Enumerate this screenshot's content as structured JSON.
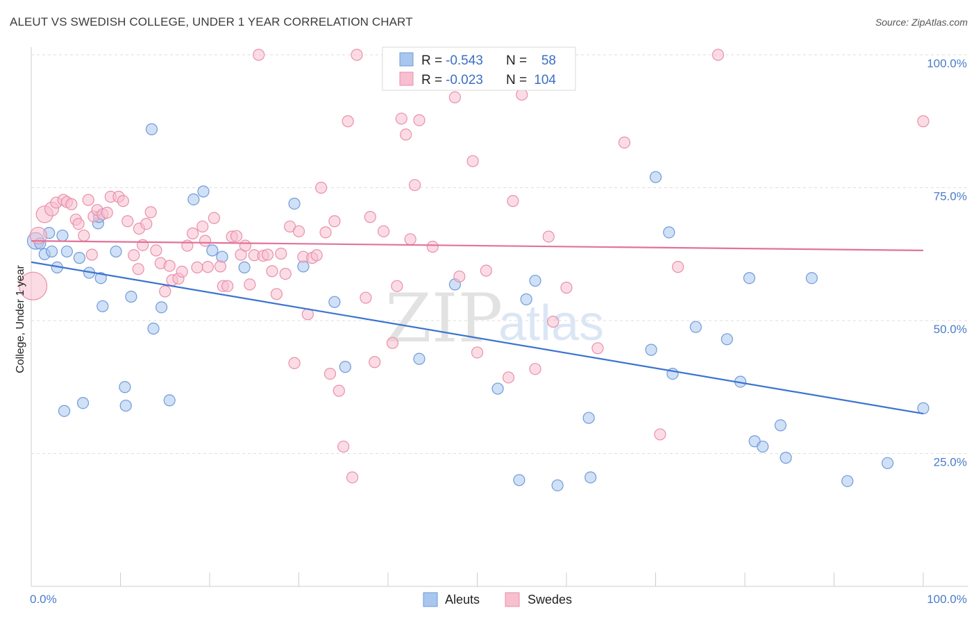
{
  "title": "ALEUT VS SWEDISH COLLEGE, UNDER 1 YEAR CORRELATION CHART",
  "source": "Source: ZipAtlas.com",
  "watermark": {
    "zip": "ZIP",
    "atlas": "atlas"
  },
  "legend": {
    "rows": [
      {
        "r_label": "R =",
        "r_value": "-0.543",
        "n_label": "N =",
        "n_value": "58",
        "color": "#a9c6ef",
        "stroke": "#6f9bd8"
      },
      {
        "r_label": "R =",
        "r_value": "-0.023",
        "n_label": "N =",
        "n_value": "104",
        "color": "#f7bfd0",
        "stroke": "#e98fab"
      }
    ]
  },
  "bottom_legend": [
    {
      "label": "Aleuts",
      "color": "#a9c6ef",
      "stroke": "#6f9bd8"
    },
    {
      "label": "Swedes",
      "color": "#f7bfd0",
      "stroke": "#e98fab"
    }
  ],
  "chart_data": {
    "type": "scatter",
    "title": "ALEUT VS SWEDISH COLLEGE, UNDER 1 YEAR CORRELATION CHART",
    "xlabel": "",
    "ylabel": "College, Under 1 year",
    "xlim": [
      0,
      100
    ],
    "ylim": [
      0,
      100
    ],
    "x_tick_labels": [
      {
        "value": 0,
        "label": "0.0%"
      },
      {
        "value": 100,
        "label": "100.0%"
      }
    ],
    "y_tick_labels": [
      {
        "value": 25,
        "label": "25.0%"
      },
      {
        "value": 50,
        "label": "50.0%"
      },
      {
        "value": 75,
        "label": "75.0%"
      },
      {
        "value": 100,
        "label": "100.0%"
      }
    ],
    "grid": "horizontal dashed",
    "legend_position": "top-center",
    "series": [
      {
        "name": "Aleuts",
        "color": "#a9c6ef",
        "stroke": "#6f9bd8",
        "line_color": "#3a74d0",
        "trend": {
          "x": [
            0,
            100
          ],
          "y": [
            61.0,
            32.5
          ]
        },
        "points": [
          [
            0.5,
            65,
            12
          ],
          [
            1.0,
            64.5,
            8
          ],
          [
            1.5,
            62.5,
            8
          ],
          [
            2.0,
            66.5,
            8
          ],
          [
            2.3,
            63,
            8
          ],
          [
            2.9,
            60,
            8
          ],
          [
            3.5,
            66,
            8
          ],
          [
            4.0,
            63,
            8
          ],
          [
            3.7,
            33,
            8
          ],
          [
            5.4,
            61.8,
            8
          ],
          [
            5.8,
            34.5,
            8
          ],
          [
            6.5,
            59,
            8
          ],
          [
            7.8,
            58,
            8
          ],
          [
            7.5,
            68.3,
            8
          ],
          [
            8.0,
            52.7,
            8
          ],
          [
            9.5,
            63,
            8
          ],
          [
            10.5,
            37.5,
            8
          ],
          [
            10.6,
            34,
            8
          ],
          [
            11.2,
            54.5,
            8
          ],
          [
            13.5,
            86,
            8
          ],
          [
            13.7,
            48.5,
            8
          ],
          [
            14.6,
            52.5,
            8
          ],
          [
            15.5,
            35,
            8
          ],
          [
            18.2,
            72.8,
            8
          ],
          [
            19.3,
            74.3,
            8
          ],
          [
            20.3,
            63.2,
            8
          ],
          [
            21.4,
            62,
            8
          ],
          [
            23.9,
            60,
            8
          ],
          [
            29.5,
            72,
            8
          ],
          [
            30.5,
            60.2,
            8
          ],
          [
            34.0,
            53.5,
            8
          ],
          [
            35.2,
            41.3,
            8
          ],
          [
            43.5,
            42.8,
            8
          ],
          [
            47.5,
            56.8,
            8
          ],
          [
            52.3,
            37.2,
            8
          ],
          [
            54.7,
            20,
            8
          ],
          [
            55.5,
            54,
            8
          ],
          [
            56.5,
            57.5,
            8
          ],
          [
            59.0,
            19,
            8
          ],
          [
            62.5,
            31.7,
            8
          ],
          [
            62.7,
            20.5,
            8
          ],
          [
            69.5,
            44.5,
            8
          ],
          [
            70.0,
            77,
            8
          ],
          [
            71.5,
            66.6,
            8
          ],
          [
            71.9,
            40,
            8
          ],
          [
            74.5,
            48.8,
            8
          ],
          [
            78.0,
            46.5,
            8
          ],
          [
            79.5,
            38.5,
            8
          ],
          [
            80.5,
            58,
            8
          ],
          [
            81.1,
            27.3,
            8
          ],
          [
            82.0,
            26.3,
            8
          ],
          [
            84.0,
            30.3,
            8
          ],
          [
            84.6,
            24.2,
            8
          ],
          [
            87.5,
            58,
            8
          ],
          [
            91.5,
            19.8,
            8
          ],
          [
            96.0,
            23.2,
            8
          ],
          [
            100.0,
            33.5,
            8
          ],
          [
            7.6,
            69.5,
            8
          ]
        ]
      },
      {
        "name": "Swedes",
        "color": "#f7bfd0",
        "stroke": "#e98fab",
        "line_color": "#e2729a",
        "trend": {
          "x": [
            0,
            100
          ],
          "y": [
            65.0,
            63.2
          ]
        },
        "points": [
          [
            0.2,
            56.5,
            20
          ],
          [
            0.8,
            66,
            12
          ],
          [
            1.5,
            70,
            12
          ],
          [
            2.3,
            71,
            10
          ],
          [
            2.8,
            72.2,
            8
          ],
          [
            3.6,
            72.7,
            8
          ],
          [
            4.0,
            72.3,
            8
          ],
          [
            4.5,
            71.9,
            8
          ],
          [
            5.0,
            69,
            8
          ],
          [
            5.3,
            68.2,
            8
          ],
          [
            5.9,
            66,
            8
          ],
          [
            6.4,
            72.7,
            8
          ],
          [
            7.0,
            69.6,
            8
          ],
          [
            7.4,
            70.8,
            8
          ],
          [
            8.0,
            70,
            8
          ],
          [
            8.5,
            70.3,
            8
          ],
          [
            8.9,
            73.3,
            8
          ],
          [
            9.8,
            73.3,
            8
          ],
          [
            10.3,
            72.5,
            8
          ],
          [
            10.8,
            68.7,
            8
          ],
          [
            11.5,
            62.3,
            8
          ],
          [
            12.1,
            67.3,
            8
          ],
          [
            12.5,
            64.2,
            8
          ],
          [
            12.9,
            68.2,
            8
          ],
          [
            13.4,
            70.4,
            8
          ],
          [
            14.0,
            63.2,
            8
          ],
          [
            14.5,
            60.8,
            8
          ],
          [
            15.0,
            55.5,
            8
          ],
          [
            15.5,
            60.3,
            8
          ],
          [
            15.8,
            57.6,
            8
          ],
          [
            16.5,
            57.9,
            8
          ],
          [
            16.9,
            59.2,
            8
          ],
          [
            17.5,
            64.1,
            8
          ],
          [
            18.1,
            66.4,
            8
          ],
          [
            18.6,
            60,
            8
          ],
          [
            19.2,
            67.7,
            8
          ],
          [
            19.5,
            65,
            8
          ],
          [
            19.8,
            60.1,
            8
          ],
          [
            20.5,
            69.3,
            8
          ],
          [
            21.2,
            60.2,
            8
          ],
          [
            21.5,
            56.5,
            8
          ],
          [
            22.0,
            56.5,
            8
          ],
          [
            22.5,
            65.8,
            8
          ],
          [
            23.0,
            65.9,
            8
          ],
          [
            23.5,
            62.4,
            8
          ],
          [
            24.0,
            64.1,
            8
          ],
          [
            24.5,
            56.8,
            8
          ],
          [
            25.0,
            62.3,
            8
          ],
          [
            25.5,
            100,
            8
          ],
          [
            26.0,
            62.2,
            8
          ],
          [
            26.5,
            62.4,
            8
          ],
          [
            27.0,
            59.3,
            8
          ],
          [
            27.5,
            55,
            8
          ],
          [
            28.0,
            62.6,
            8
          ],
          [
            28.5,
            58.8,
            8
          ],
          [
            29.0,
            67.7,
            8
          ],
          [
            29.5,
            42,
            8
          ],
          [
            30.0,
            66.8,
            8
          ],
          [
            30.5,
            62,
            8
          ],
          [
            31.0,
            51.2,
            8
          ],
          [
            31.5,
            61.8,
            8
          ],
          [
            32.0,
            62.3,
            8
          ],
          [
            32.5,
            75,
            8
          ],
          [
            33.0,
            66.6,
            8
          ],
          [
            33.5,
            40,
            8
          ],
          [
            34.0,
            68.7,
            8
          ],
          [
            34.5,
            36.8,
            8
          ],
          [
            35.0,
            26.3,
            8
          ],
          [
            35.5,
            87.5,
            8
          ],
          [
            36.0,
            20.5,
            8
          ],
          [
            36.5,
            100,
            8
          ],
          [
            37.5,
            54.3,
            8
          ],
          [
            38.0,
            69.5,
            8
          ],
          [
            38.5,
            42.2,
            8
          ],
          [
            39.5,
            66.8,
            8
          ],
          [
            40.5,
            45.8,
            8
          ],
          [
            41.0,
            56.5,
            8
          ],
          [
            41.5,
            88,
            8
          ],
          [
            42.0,
            85,
            8
          ],
          [
            42.5,
            65.3,
            8
          ],
          [
            43.0,
            75.5,
            8
          ],
          [
            43.5,
            87.7,
            8
          ],
          [
            45.0,
            63.9,
            8
          ],
          [
            46.5,
            100,
            8
          ],
          [
            47.5,
            92,
            8
          ],
          [
            48.0,
            58.3,
            8
          ],
          [
            49.5,
            80,
            8
          ],
          [
            50.0,
            44,
            8
          ],
          [
            51.0,
            59.4,
            8
          ],
          [
            53.5,
            39.3,
            8
          ],
          [
            54.0,
            72.5,
            8
          ],
          [
            55.0,
            92.5,
            8
          ],
          [
            56.5,
            40.9,
            8
          ],
          [
            58.0,
            65.8,
            8
          ],
          [
            58.5,
            49.8,
            8
          ],
          [
            60.0,
            56.2,
            8
          ],
          [
            63.5,
            44.8,
            8
          ],
          [
            66.5,
            83.5,
            8
          ],
          [
            70.5,
            28.6,
            8
          ],
          [
            72.5,
            60.1,
            8
          ],
          [
            77.0,
            100,
            8
          ],
          [
            100.0,
            87.5,
            8
          ],
          [
            6.8,
            62.4,
            8
          ],
          [
            12.0,
            59.7,
            8
          ]
        ]
      }
    ]
  }
}
